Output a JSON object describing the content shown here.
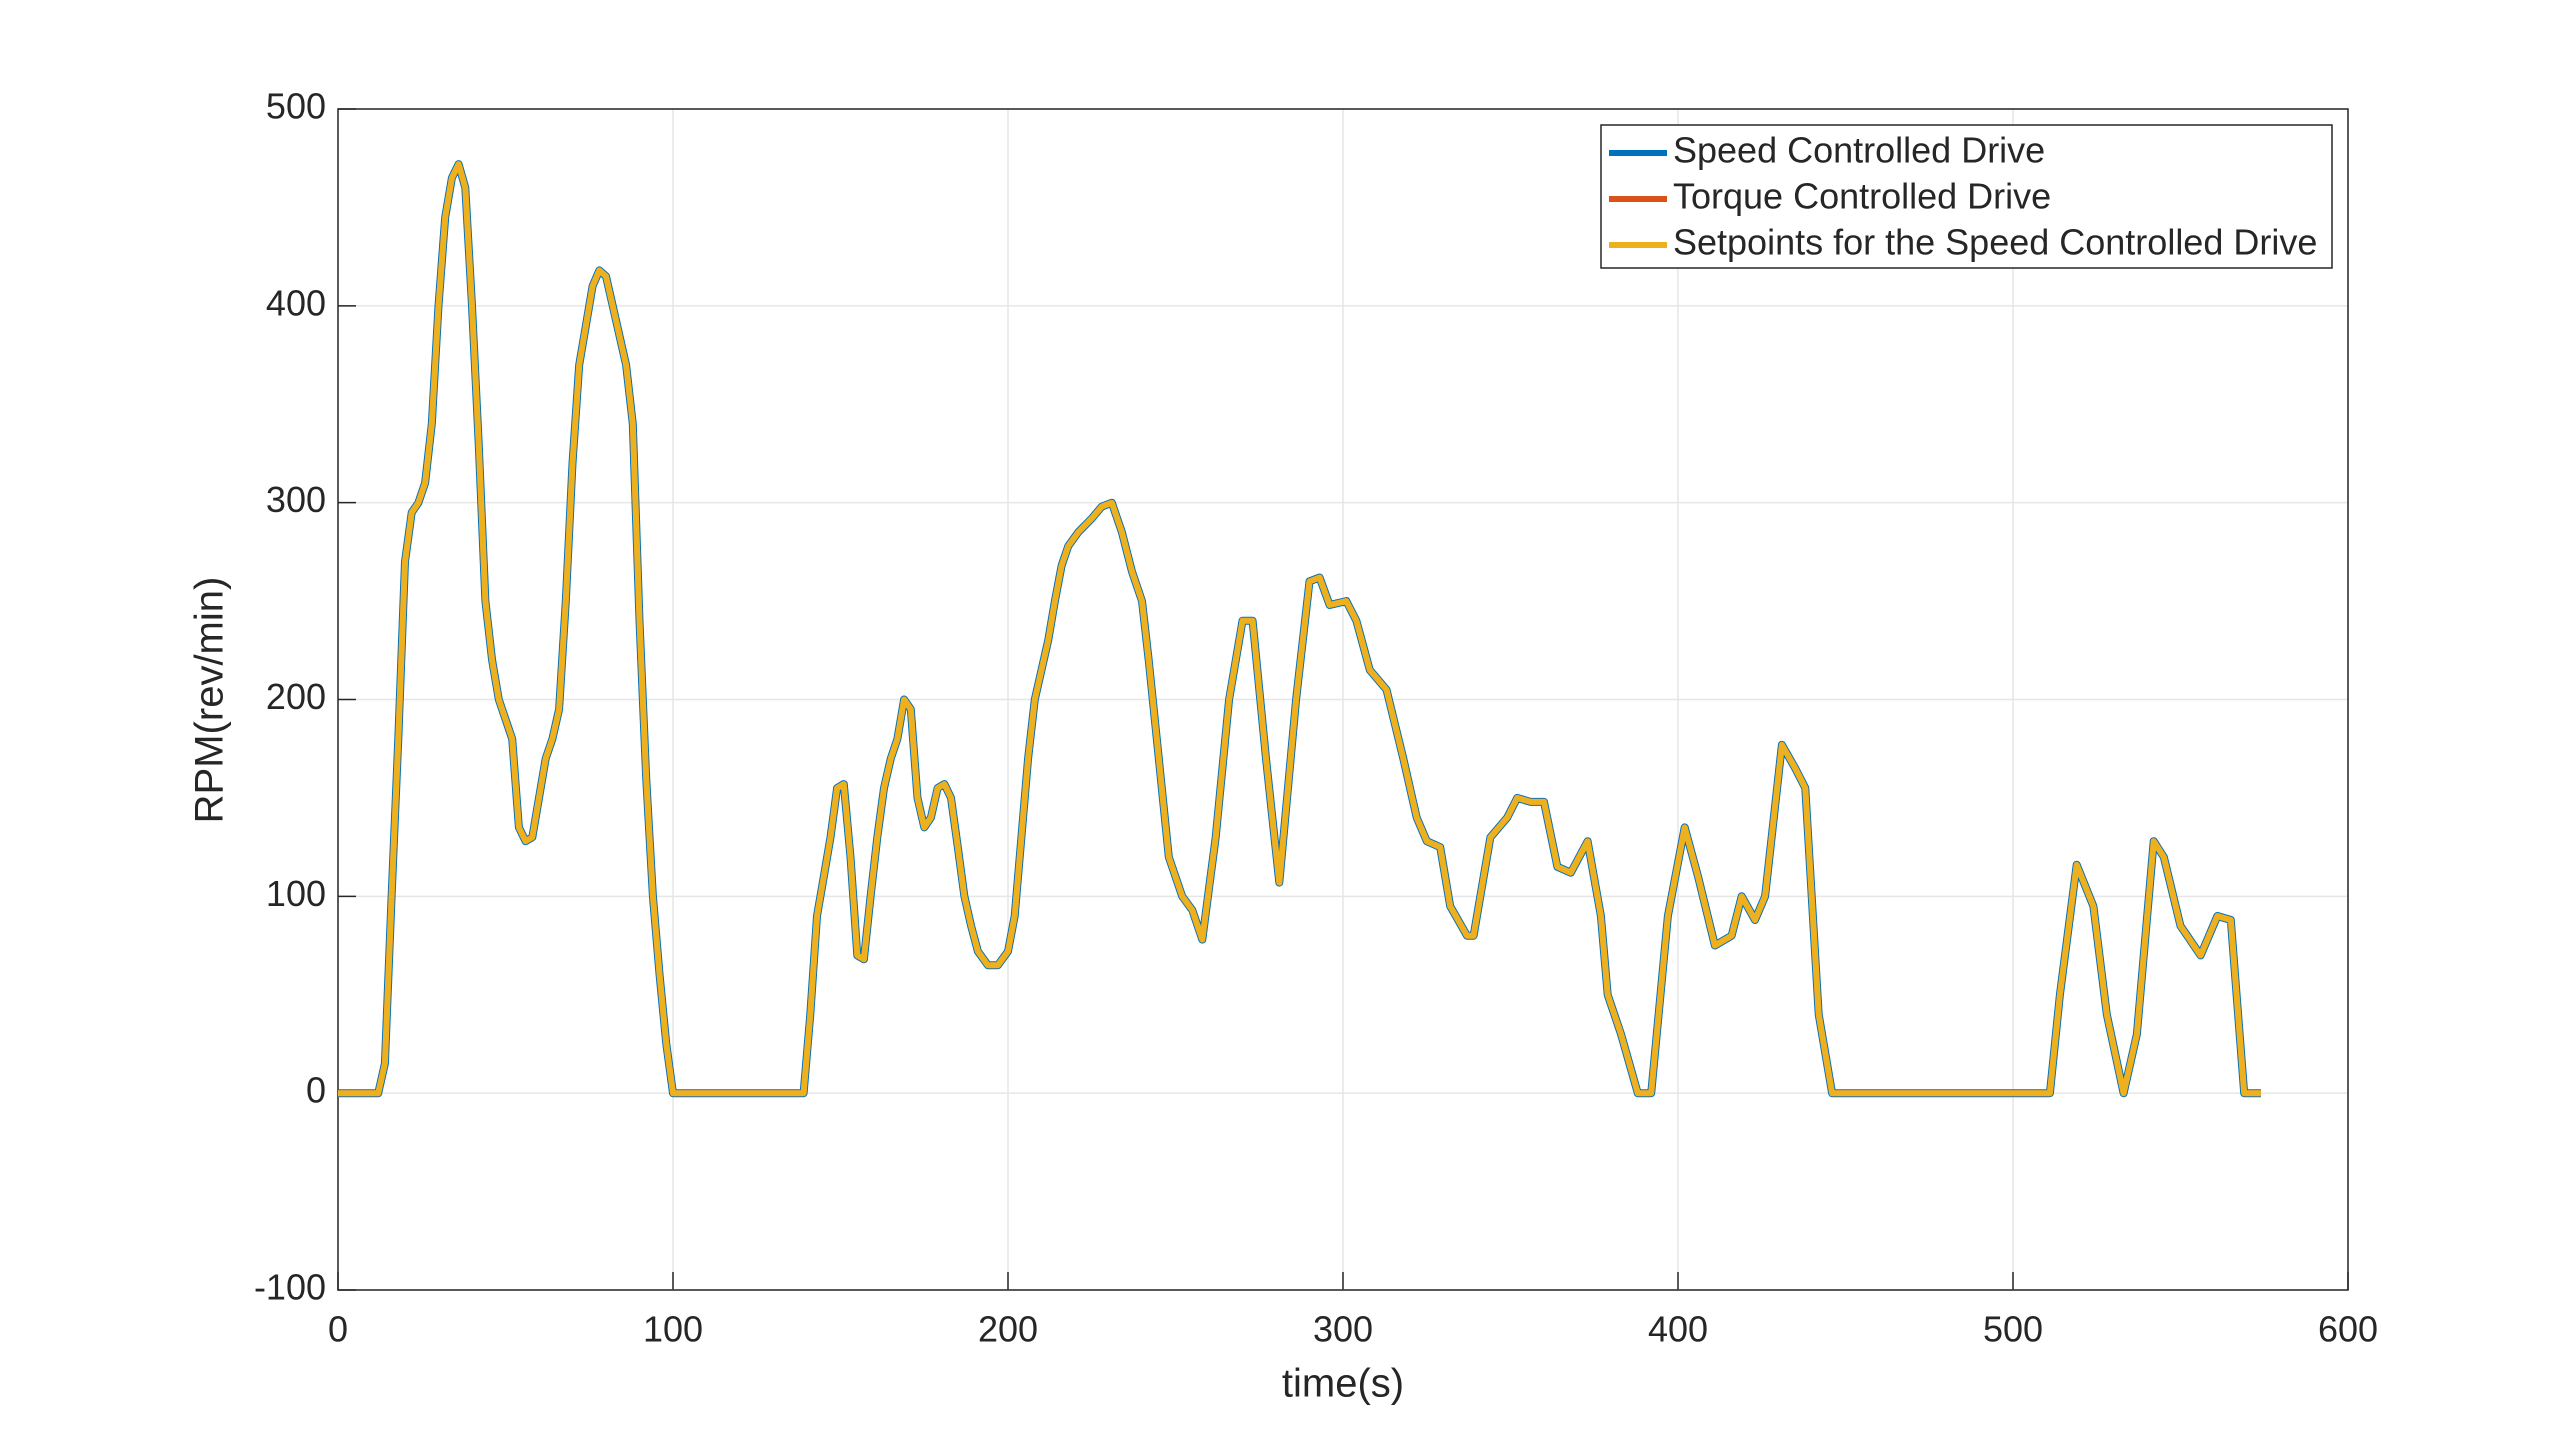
{
  "chart_data": {
    "type": "line",
    "xlabel": "time(s)",
    "ylabel": "RPM(rev/min)",
    "xlim": [
      0,
      600
    ],
    "ylim": [
      -100,
      500
    ],
    "xticks": [
      0,
      100,
      200,
      300,
      400,
      500,
      600
    ],
    "yticks": [
      -100,
      0,
      100,
      200,
      300,
      400,
      500
    ],
    "grid": true,
    "legend": "upper right",
    "x": [
      0,
      12,
      14,
      16,
      18,
      20,
      22,
      24,
      26,
      28,
      30,
      32,
      34,
      36,
      38,
      40,
      42,
      44,
      46,
      48,
      50,
      52,
      54,
      56,
      58,
      60,
      62,
      64,
      66,
      68,
      70,
      72,
      74,
      76,
      78,
      80,
      82,
      84,
      86,
      88,
      90,
      92,
      94,
      96,
      98,
      100,
      139,
      141,
      143,
      145,
      147,
      149,
      151,
      153,
      155,
      157,
      159,
      161,
      163,
      165,
      167,
      169,
      171,
      173,
      175,
      177,
      179,
      181,
      183,
      185,
      187,
      189,
      191,
      194,
      197,
      200,
      202,
      204,
      206,
      208,
      210,
      212,
      214,
      216,
      218,
      221,
      225,
      228,
      231,
      234,
      237,
      240,
      242,
      245,
      248,
      252,
      255,
      258,
      262,
      266,
      270,
      273,
      277,
      281,
      286,
      290,
      293,
      296,
      301,
      304,
      308,
      313,
      318,
      322,
      325,
      329,
      332,
      337,
      339,
      344,
      349,
      352,
      356,
      360,
      364,
      368,
      373,
      377,
      379,
      383,
      388,
      392,
      397,
      402,
      406,
      411,
      416,
      419,
      423,
      426,
      431,
      435,
      438,
      442,
      446,
      511,
      514,
      519,
      524,
      528,
      533,
      537,
      542,
      545,
      550,
      556,
      561,
      565,
      569,
      574
    ],
    "series": [
      {
        "name": "Speed Controlled Drive",
        "color": "#0072bd",
        "values": [
          0,
          0,
          15,
          100,
          180,
          270,
          295,
          300,
          310,
          340,
          400,
          445,
          465,
          472,
          460,
          400,
          330,
          250,
          220,
          200,
          190,
          180,
          135,
          128,
          130,
          150,
          170,
          180,
          195,
          250,
          320,
          370,
          390,
          410,
          418,
          415,
          400,
          385,
          370,
          340,
          240,
          160,
          100,
          60,
          25,
          0,
          0,
          40,
          90,
          110,
          130,
          155,
          157,
          120,
          70,
          68,
          100,
          130,
          155,
          170,
          180,
          200,
          195,
          150,
          135,
          140,
          155,
          157,
          150,
          125,
          100,
          85,
          72,
          65,
          65,
          72,
          90,
          130,
          170,
          200,
          215,
          230,
          250,
          268,
          278,
          285,
          292,
          298,
          300,
          285,
          265,
          250,
          220,
          170,
          120,
          100,
          93,
          78,
          130,
          200,
          240,
          240,
          170,
          107,
          200,
          260,
          262,
          248,
          250,
          240,
          215,
          205,
          170,
          140,
          128,
          125,
          95,
          80,
          80,
          130,
          140,
          150,
          148,
          148,
          115,
          112,
          128,
          90,
          50,
          30,
          0,
          0,
          90,
          135,
          110,
          75,
          80,
          100,
          88,
          100,
          177,
          165,
          155,
          40,
          0,
          0,
          50,
          116,
          95,
          40,
          0,
          30,
          128,
          120,
          85,
          70,
          90,
          88,
          0,
          0
        ]
      },
      {
        "name": "Torque Controlled Drive",
        "color": "#d95319",
        "values": [
          0,
          0,
          15,
          100,
          180,
          270,
          295,
          300,
          310,
          340,
          400,
          445,
          465,
          472,
          460,
          400,
          330,
          250,
          220,
          200,
          190,
          180,
          135,
          128,
          130,
          150,
          170,
          180,
          195,
          250,
          320,
          370,
          390,
          410,
          418,
          415,
          400,
          385,
          370,
          340,
          240,
          160,
          100,
          60,
          25,
          0,
          0,
          40,
          90,
          110,
          130,
          155,
          157,
          120,
          70,
          68,
          100,
          130,
          155,
          170,
          180,
          200,
          195,
          150,
          135,
          140,
          155,
          157,
          150,
          125,
          100,
          85,
          72,
          65,
          65,
          72,
          90,
          130,
          170,
          200,
          215,
          230,
          250,
          268,
          278,
          285,
          292,
          298,
          300,
          285,
          265,
          250,
          220,
          170,
          120,
          100,
          93,
          78,
          130,
          200,
          240,
          240,
          170,
          107,
          200,
          260,
          262,
          248,
          250,
          240,
          215,
          205,
          170,
          140,
          128,
          125,
          95,
          80,
          80,
          130,
          140,
          150,
          148,
          148,
          115,
          112,
          128,
          90,
          50,
          30,
          0,
          0,
          90,
          135,
          110,
          75,
          80,
          100,
          88,
          100,
          177,
          165,
          155,
          40,
          0,
          0,
          50,
          116,
          95,
          40,
          0,
          30,
          128,
          120,
          85,
          70,
          90,
          88,
          0,
          0
        ]
      },
      {
        "name": "Setpoints for the Speed Controlled Drive",
        "color": "#edb120",
        "values": [
          0,
          0,
          15,
          100,
          180,
          270,
          295,
          300,
          310,
          340,
          400,
          445,
          465,
          472,
          460,
          400,
          330,
          250,
          220,
          200,
          190,
          180,
          135,
          128,
          130,
          150,
          170,
          180,
          195,
          250,
          320,
          370,
          390,
          410,
          418,
          415,
          400,
          385,
          370,
          340,
          240,
          160,
          100,
          60,
          25,
          0,
          0,
          40,
          90,
          110,
          130,
          155,
          157,
          120,
          70,
          68,
          100,
          130,
          155,
          170,
          180,
          200,
          195,
          150,
          135,
          140,
          155,
          157,
          150,
          125,
          100,
          85,
          72,
          65,
          65,
          72,
          90,
          130,
          170,
          200,
          215,
          230,
          250,
          268,
          278,
          285,
          292,
          298,
          300,
          285,
          265,
          250,
          220,
          170,
          120,
          100,
          93,
          78,
          130,
          200,
          240,
          240,
          170,
          107,
          200,
          260,
          262,
          248,
          250,
          240,
          215,
          205,
          170,
          140,
          128,
          125,
          95,
          80,
          80,
          130,
          140,
          150,
          148,
          148,
          115,
          112,
          128,
          90,
          50,
          30,
          0,
          0,
          90,
          135,
          110,
          75,
          80,
          100,
          88,
          100,
          177,
          165,
          155,
          40,
          0,
          0,
          50,
          116,
          95,
          40,
          0,
          30,
          128,
          120,
          85,
          70,
          90,
          88,
          0,
          0
        ]
      }
    ]
  }
}
